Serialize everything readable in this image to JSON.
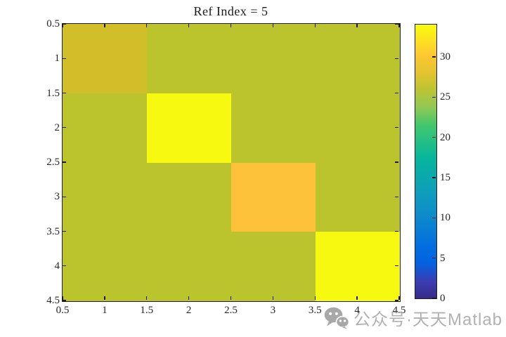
{
  "chart_data": {
    "type": "heatmap",
    "title": "Ref Index = 5",
    "x": [
      1,
      2,
      3,
      4
    ],
    "y": [
      1,
      2,
      3,
      4
    ],
    "matrix": [
      [
        27,
        25,
        25,
        25
      ],
      [
        25,
        34,
        25,
        25
      ],
      [
        25,
        25,
        30,
        25
      ],
      [
        25,
        25,
        25,
        34
      ]
    ],
    "cell_colors": [
      [
        "#D1BE28",
        "#BBC42C",
        "#BBC42C",
        "#BBC42C"
      ],
      [
        "#BBC42C",
        "#F8F911",
        "#BBC42C",
        "#BBC42C"
      ],
      [
        "#BBC42C",
        "#BBC42C",
        "#FDC23A",
        "#BBC42C"
      ],
      [
        "#BBC42C",
        "#BBC42C",
        "#BBC42C",
        "#F8F911"
      ]
    ],
    "xlim": [
      0.5,
      4.5
    ],
    "ylim": [
      0.5,
      4.5
    ],
    "y_direction": "reverse",
    "grid": false,
    "xtick_labels": [
      "0.5",
      "1",
      "1.5",
      "2",
      "2.5",
      "3",
      "3.5",
      "4",
      "4.5"
    ],
    "xtick_values": [
      0.5,
      1,
      1.5,
      2,
      2.5,
      3,
      3.5,
      4,
      4.5
    ],
    "ytick_labels": [
      "0.5",
      "1",
      "1.5",
      "2",
      "2.5",
      "3",
      "3.5",
      "4",
      "4.5"
    ],
    "ytick_values": [
      0.5,
      1,
      1.5,
      2,
      2.5,
      3,
      3.5,
      4,
      4.5
    ],
    "colorbar": {
      "position": "right",
      "min": 0,
      "max": 34,
      "tick_labels": [
        "0",
        "5",
        "10",
        "15",
        "20",
        "25",
        "30"
      ],
      "tick_values": [
        0,
        5,
        10,
        15,
        20,
        25,
        30
      ],
      "colormap": "parula",
      "gradient_stops": [
        {
          "pct": 0,
          "color": "#352A87"
        },
        {
          "pct": 6,
          "color": "#3D3CB1"
        },
        {
          "pct": 13,
          "color": "#0363E1"
        },
        {
          "pct": 19,
          "color": "#046DE0"
        },
        {
          "pct": 31,
          "color": "#0D8DC8"
        },
        {
          "pct": 38,
          "color": "#109CBE"
        },
        {
          "pct": 51,
          "color": "#06B59C"
        },
        {
          "pct": 63,
          "color": "#40C76E"
        },
        {
          "pct": 70,
          "color": "#93C853"
        },
        {
          "pct": 76,
          "color": "#BBC433"
        },
        {
          "pct": 82,
          "color": "#E0C32F"
        },
        {
          "pct": 89,
          "color": "#FEC832"
        },
        {
          "pct": 95,
          "color": "#FCE51D"
        },
        {
          "pct": 100,
          "color": "#F9FB0E"
        }
      ]
    }
  },
  "watermark": {
    "icon": "wechat-icon",
    "text": "公众号·天天Matlab",
    "color": "#A7A7A7"
  },
  "colors": {
    "axis": "#1F1F1F",
    "tick_text": "#262626",
    "title_text": "#1A1A1A",
    "background": "#FFFFFF"
  }
}
